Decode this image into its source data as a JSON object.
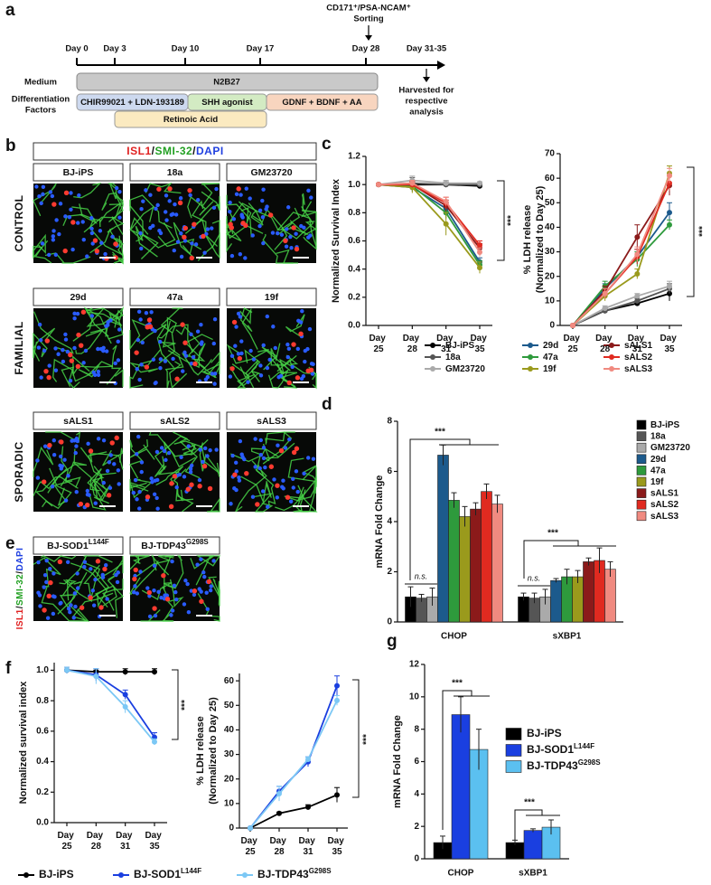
{
  "figure_labels": [
    "a",
    "b",
    "c",
    "d",
    "e",
    "f",
    "g"
  ],
  "timeline": {
    "days": [
      "Day 0",
      "Day 3",
      "Day 10",
      "Day 17",
      "Day 28",
      "Day 31-35"
    ],
    "sorting": [
      "CD171⁺/PSA-NCAM⁺",
      "Sorting"
    ],
    "medium_label": "Medium",
    "medium": "N2B27",
    "factors_label": [
      "Differentiation",
      "Factors"
    ],
    "factors": [
      "CHIR99021 + LDN-193189",
      "SHH agonist",
      "GDNF + BDNF + AA",
      "Retinoic Acid"
    ],
    "harvest": [
      "Harvested for",
      "respective",
      "analysis"
    ]
  },
  "micrographs": {
    "stain": [
      "ISL1",
      "/",
      "SMI-32",
      "/",
      "DAPI"
    ],
    "rows": [
      {
        "label": "CONTROL",
        "lines": [
          "BJ-iPS",
          "18a",
          "GM23720"
        ]
      },
      {
        "label": "FAMILIAL",
        "lines": [
          "29d",
          "47a",
          "19f"
        ]
      },
      {
        "label": "SPORADIC",
        "lines": [
          "sALS1",
          "sALS2",
          "sALS3"
        ]
      }
    ],
    "isogenic": [
      {
        "name": "BJ-SOD1",
        "name_sup": "L144F"
      },
      {
        "name": "BJ-TDP43",
        "name_sup": "G298S"
      }
    ],
    "isogenic_stain": [
      "ISL1",
      "/",
      "SMI-32",
      "/",
      "DAPI"
    ]
  },
  "chart_data": [
    {
      "type": "line",
      "ylabel": "Normalized Survival Index",
      "categories": [
        "Day 25",
        "Day 28",
        "Day 31",
        "Day 35"
      ],
      "ylim": [
        0,
        1.2
      ],
      "yticks": [
        {
          "value": 0,
          "label": "0.0"
        },
        0.2,
        0.4,
        0.6,
        0.8,
        {
          "value": 1,
          "label": "1.0"
        },
        1.2
      ],
      "series": [
        {
          "name": "BJ-iPS",
          "color": "#000000",
          "values": [
            1,
            1,
            1,
            0.99
          ],
          "errors": [
            0.01,
            0.01,
            0.01,
            0.01
          ]
        },
        {
          "name": "18a",
          "color": "#555555",
          "values": [
            1,
            1.01,
            1,
            1
          ],
          "errors": [
            0.01,
            0.04,
            0.02,
            0.01
          ]
        },
        {
          "name": "GM23720",
          "color": "#aaaaaa",
          "values": [
            1,
            1.03,
            1.01,
            1.01
          ],
          "errors": [
            0.01,
            0.03,
            0.02,
            0.01
          ]
        },
        {
          "name": "29d",
          "color": "#1c5a8c",
          "values": [
            1,
            0.98,
            0.83,
            0.45
          ],
          "errors": [
            0.01,
            0.03,
            0.04,
            0.03
          ]
        },
        {
          "name": "47a",
          "color": "#2e9a3c",
          "values": [
            1,
            0.99,
            0.8,
            0.43
          ],
          "errors": [
            0.01,
            0.03,
            0.04,
            0.03
          ]
        },
        {
          "name": "19f",
          "color": "#9a9a1c",
          "values": [
            1,
            0.98,
            0.72,
            0.41
          ],
          "errors": [
            0.01,
            0.04,
            0.08,
            0.04
          ]
        },
        {
          "name": "sALS1",
          "color": "#8b1a1a",
          "values": [
            1,
            1,
            0.85,
            0.55
          ],
          "errors": [
            0.01,
            0.02,
            0.04,
            0.03
          ]
        },
        {
          "name": "sALS2",
          "color": "#e02a20",
          "values": [
            1,
            1,
            0.87,
            0.57
          ],
          "errors": [
            0.01,
            0.02,
            0.04,
            0.03
          ]
        },
        {
          "name": "sALS3",
          "color": "#f08a80",
          "values": [
            1,
            1.01,
            0.88,
            0.52
          ],
          "errors": [
            0.01,
            0.02,
            0.03,
            0.03
          ]
        }
      ],
      "annotations": [
        "***"
      ]
    },
    {
      "type": "line",
      "ylabel": [
        "% LDH release",
        "(Normalized to Day 25)"
      ],
      "categories": [
        "Day 25",
        "Day 28",
        "Day 31",
        "Day 35"
      ],
      "ylim": [
        0,
        70
      ],
      "yticks": [
        0,
        10,
        20,
        30,
        40,
        50,
        60,
        70
      ],
      "series": [
        {
          "color": "#000000",
          "values": [
            0,
            6,
            9,
            13
          ],
          "errors": [
            0,
            1,
            1,
            3
          ]
        },
        {
          "color": "#555555",
          "values": [
            0,
            6,
            10,
            15
          ],
          "errors": [
            0,
            1,
            1,
            2
          ]
        },
        {
          "color": "#aaaaaa",
          "values": [
            0,
            7,
            12,
            16
          ],
          "errors": [
            0,
            1,
            1,
            2
          ]
        },
        {
          "color": "#1c5a8c",
          "values": [
            0,
            15,
            28,
            46
          ],
          "errors": [
            0,
            2,
            3,
            4
          ]
        },
        {
          "color": "#2e9a3c",
          "values": [
            0,
            16,
            27,
            41
          ],
          "errors": [
            0,
            2,
            3,
            2
          ]
        },
        {
          "color": "#9a9a1c",
          "values": [
            0,
            12,
            21,
            62
          ],
          "errors": [
            0,
            2,
            2,
            3
          ]
        },
        {
          "color": "#8b1a1a",
          "values": [
            0,
            14,
            36,
            57
          ],
          "errors": [
            0,
            2,
            5,
            4
          ]
        },
        {
          "color": "#e02a20",
          "values": [
            0,
            13,
            28,
            58
          ],
          "errors": [
            0,
            2,
            3,
            3
          ]
        },
        {
          "color": "#f08a80",
          "values": [
            0,
            13,
            29,
            61
          ],
          "errors": [
            0,
            2,
            3,
            3
          ]
        }
      ],
      "annotations": [
        "***"
      ]
    },
    {
      "type": "bar",
      "ylabel": "mRNA Fold Change",
      "categories": [
        "CHOP",
        "sXBP1"
      ],
      "ylim": [
        0,
        8
      ],
      "yticks": [
        0,
        2,
        4,
        6,
        8
      ],
      "series": [
        {
          "name": "BJ-iPS",
          "color": "#000000",
          "values": [
            1,
            1
          ],
          "errors": [
            0.4,
            0.15
          ]
        },
        {
          "name": "18a",
          "color": "#555555",
          "values": [
            0.95,
            0.95
          ],
          "errors": [
            0.15,
            0.2
          ]
        },
        {
          "name": "GM23720",
          "color": "#aaaaaa",
          "values": [
            1,
            1
          ],
          "errors": [
            0.35,
            0.3
          ]
        },
        {
          "name": "29d",
          "color": "#1c5a8c",
          "values": [
            6.65,
            1.65
          ],
          "errors": [
            0.4,
            0.08
          ]
        },
        {
          "name": "47a",
          "color": "#2e9a3c",
          "values": [
            4.85,
            1.8
          ],
          "errors": [
            0.3,
            0.3
          ]
        },
        {
          "name": "19f",
          "color": "#9a9a1c",
          "values": [
            4.2,
            1.8
          ],
          "errors": [
            0.4,
            0.25
          ]
        },
        {
          "name": "sALS1",
          "color": "#8b1a1a",
          "values": [
            4.5,
            2.4
          ],
          "errors": [
            0.25,
            0.15
          ]
        },
        {
          "name": "sALS2",
          "color": "#e02a20",
          "values": [
            5.2,
            2.45
          ],
          "errors": [
            0.3,
            0.5
          ]
        },
        {
          "name": "sALS3",
          "color": "#f08a80",
          "values": [
            4.7,
            2.1
          ],
          "errors": [
            0.35,
            0.3
          ]
        }
      ],
      "annotations": [
        "***",
        "n.s.",
        "***",
        "n.s."
      ]
    },
    {
      "type": "line",
      "ylabel": "Normalized survival index",
      "categories": [
        "Day 25",
        "Day 28",
        "Day 31",
        "Day 35"
      ],
      "ylim": [
        0,
        1.05
      ],
      "yticks": [
        {
          "value": 0,
          "label": "0.0"
        },
        0.2,
        0.4,
        0.6,
        0.8,
        {
          "value": 1,
          "label": "1.0"
        }
      ],
      "series": [
        {
          "name": "BJ-iPS",
          "color": "#000000",
          "values": [
            1,
            0.99,
            0.99,
            0.99
          ],
          "errors": [
            0.02,
            0.01,
            0.02,
            0.02
          ]
        },
        {
          "name": "BJ-SOD1",
          "name_sup": "L144F",
          "color": "#1a3fe0",
          "values": [
            1,
            0.97,
            0.84,
            0.56
          ],
          "errors": [
            0.02,
            0.04,
            0.03,
            0.03
          ]
        },
        {
          "name": "BJ-TDP43",
          "name_sup": "G298S",
          "color": "#7cc8f5",
          "values": [
            1,
            0.96,
            0.76,
            0.53
          ],
          "errors": [
            0.02,
            0.05,
            0.04,
            0.02
          ]
        }
      ],
      "annotations": [
        "***"
      ]
    },
    {
      "type": "line",
      "ylabel": [
        "% LDH release",
        "(Normalized to Day 25)"
      ],
      "categories": [
        "Day 25",
        "Day 28",
        "Day 31",
        "Day 35"
      ],
      "ylim": [
        0,
        63
      ],
      "yticks": [
        0,
        10,
        20,
        30,
        40,
        50,
        60
      ],
      "series": [
        {
          "color": "#000000",
          "values": [
            0,
            6,
            8.5,
            13.5
          ],
          "errors": [
            0,
            0.5,
            1,
            3
          ]
        },
        {
          "color": "#1a3fe0",
          "values": [
            0,
            15,
            27,
            58
          ],
          "errors": [
            0,
            2,
            2,
            4
          ]
        },
        {
          "color": "#7cc8f5",
          "values": [
            0,
            14,
            28,
            52
          ],
          "errors": [
            0,
            3,
            1,
            2
          ]
        }
      ],
      "annotations": [
        "***"
      ]
    },
    {
      "type": "bar",
      "ylabel": "mRNA Fold Change",
      "categories": [
        "CHOP",
        "sXBP1"
      ],
      "ylim": [
        0,
        12
      ],
      "yticks": [
        0,
        2,
        4,
        6,
        8,
        10,
        12
      ],
      "series": [
        {
          "name": "BJ-iPS",
          "color": "#000000",
          "values": [
            1,
            1
          ],
          "errors": [
            0.4,
            0.15
          ]
        },
        {
          "name": "BJ-SOD1",
          "name_sup": "L144F",
          "color": "#1a3fe0",
          "values": [
            8.9,
            1.75
          ],
          "errors": [
            1.1,
            0.1
          ]
        },
        {
          "name": "BJ-TDP43",
          "name_sup": "G298S",
          "color": "#5bc0f0",
          "values": [
            6.75,
            1.95
          ],
          "errors": [
            1.25,
            0.45
          ]
        }
      ],
      "annotations": [
        "***",
        "***"
      ]
    }
  ]
}
